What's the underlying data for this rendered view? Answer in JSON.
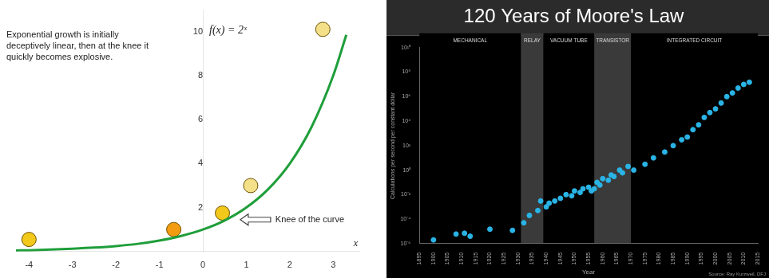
{
  "chart_data": [
    {
      "type": "line",
      "text": "Exponential growth is initially deceptively linear, then at the knee it quickly becomes explosive.",
      "formula": "f(x) = 2ˣ",
      "annotation": {
        "text": "Knee of the curve",
        "x": 0.75,
        "y": 1.45
      },
      "x_label": "x",
      "xlim": [
        -4.3,
        3.6
      ],
      "xticks": [
        -4,
        -3,
        -2,
        -1,
        0,
        1,
        2,
        3
      ],
      "ylim": [
        0,
        11
      ],
      "yticks": [
        2,
        4,
        6,
        8,
        10
      ],
      "grid": false,
      "series": [
        {
          "type": "line",
          "color": "#1f9e3a",
          "line_style": "solid",
          "x": [
            -4.3,
            -4,
            -3.5,
            -3,
            -2.5,
            -2,
            -1.5,
            -1,
            -0.5,
            0,
            0.5,
            1,
            1.5,
            2,
            2.5,
            3,
            3.3
          ],
          "values": [
            0.05,
            0.06,
            0.09,
            0.13,
            0.18,
            0.25,
            0.35,
            0.5,
            0.71,
            1,
            1.41,
            2,
            2.83,
            4,
            5.66,
            8,
            9.85
          ]
        },
        {
          "type": "scatter",
          "marker": "circle",
          "colors": [
            "#f2c81a",
            "#f39c12",
            "#f2c81a",
            "#f5e08a",
            "#f5e08a"
          ],
          "x": [
            -4,
            -0.67,
            0.45,
            1.1,
            2.76
          ],
          "values": [
            0.55,
            1.0,
            1.75,
            3.0,
            10.1
          ]
        }
      ]
    },
    {
      "type": "scatter",
      "title": "120 Years of Moore's Law",
      "x_label": "Year",
      "y_label": "Calculations per second per constant dollar",
      "source": "Source: Ray Kurzweil, DFJ",
      "eras": [
        {
          "label": "MECHANICAL",
          "start": 1895,
          "end": 1931,
          "color": "#000000"
        },
        {
          "label": "RELAY",
          "start": 1931,
          "end": 1939,
          "color": "#3a3a3a"
        },
        {
          "label": "VACUUM TUBE",
          "start": 1939,
          "end": 1957,
          "color": "#000000"
        },
        {
          "label": "TRANSISTOR",
          "start": 1957,
          "end": 1970,
          "color": "#3a3a3a"
        },
        {
          "label": "INTEGRATED CIRCUIT",
          "start": 1970,
          "end": 2015,
          "color": "#000000"
        }
      ],
      "log": "y",
      "grid": false,
      "xlim": [
        1895,
        2015
      ],
      "xticks": [
        1895,
        1900,
        1905,
        1910,
        1915,
        1920,
        1925,
        1930,
        1935,
        1940,
        1945,
        1950,
        1955,
        1960,
        1965,
        1970,
        1975,
        1980,
        1985,
        1990,
        1995,
        2000,
        2005,
        2010,
        2015
      ],
      "ylim": [
        1e-06,
        10000000000.0
      ],
      "yticks": [
        {
          "value": 1e-06,
          "label": "10⁻⁶"
        },
        {
          "value": 0.0001,
          "label": "10⁻⁴"
        },
        {
          "value": 0.01,
          "label": "10⁻²"
        },
        {
          "value": 1,
          "label": "10⁰"
        },
        {
          "value": 100.0,
          "label": "10²"
        },
        {
          "value": 10000.0,
          "label": "10⁴"
        },
        {
          "value": 1000000.0,
          "label": "10⁶"
        },
        {
          "value": 100000000.0,
          "label": "10⁸"
        },
        {
          "value": 10000000000.0,
          "label": "10¹⁰"
        }
      ],
      "series": [
        {
          "type": "scatter",
          "marker": "circle",
          "color": "#2ab4e6",
          "x": [
            1900,
            1908,
            1911,
            1913,
            1920,
            1928,
            1932,
            1934,
            1937,
            1938,
            1940,
            1941,
            1943,
            1945,
            1947,
            1949,
            1950,
            1952,
            1953,
            1955,
            1956,
            1957,
            1958,
            1959,
            1960,
            1962,
            1963,
            1964,
            1966,
            1967,
            1969,
            1971,
            1975,
            1978,
            1982,
            1985,
            1988,
            1990,
            1992,
            1994,
            1996,
            1998,
            2000,
            2002,
            2004,
            2006,
            2008,
            2010,
            2012
          ],
          "values": [
            2e-06,
            6e-06,
            7e-06,
            4e-06,
            1.5e-05,
            1.2e-05,
            5e-05,
            0.0002,
            0.0005,
            0.003,
            0.001,
            0.002,
            0.003,
            0.005,
            0.01,
            0.008,
            0.02,
            0.015,
            0.03,
            0.04,
            0.02,
            0.03,
            0.1,
            0.06,
            0.2,
            0.15,
            0.4,
            0.3,
            1,
            0.6,
            2,
            1,
            3,
            10,
            30,
            100,
            300,
            500,
            2000,
            5000,
            20000,
            50000,
            100000,
            300000,
            1000000,
            2000000,
            5000000,
            10000000,
            15000000
          ]
        }
      ]
    }
  ]
}
